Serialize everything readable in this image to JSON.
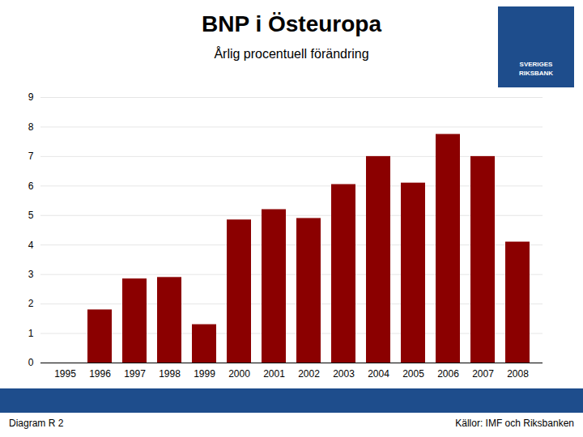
{
  "chart_data": {
    "type": "bar",
    "title": "BNP i Östeuropa",
    "subtitle": "Årlig procentuell förändring",
    "categories": [
      "1995",
      "1996",
      "1997",
      "1998",
      "1999",
      "2000",
      "2001",
      "2002",
      "2003",
      "2004",
      "2005",
      "2006",
      "2007",
      "2008"
    ],
    "values": [
      0,
      1.8,
      2.85,
      2.9,
      1.3,
      4.85,
      5.2,
      4.9,
      6.05,
      7.0,
      6.1,
      7.75,
      7.0,
      4.1
    ],
    "color": "#8B0000",
    "ylim": [
      0,
      9
    ],
    "yticks": [
      0,
      1,
      2,
      3,
      4,
      5,
      6,
      7,
      8,
      9
    ],
    "grid": true,
    "annotations": [
      "Diagram R 2",
      "Källor: IMF och Riksbanken",
      "SVERIGES\nRIKSBANK"
    ]
  }
}
